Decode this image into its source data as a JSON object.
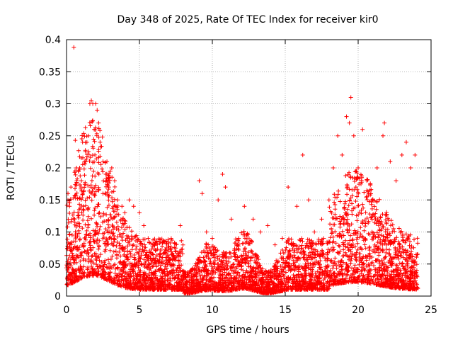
{
  "chart_data": {
    "type": "scatter",
    "title": "Day 348 of 2025, Rate Of TEC Index for receiver kir0",
    "xlabel": "GPS time / hours",
    "ylabel": "ROTI / TECUs",
    "xlim": [
      0,
      25
    ],
    "ylim": [
      0,
      0.4
    ],
    "x_ticks": [
      0,
      5,
      10,
      15,
      20,
      25
    ],
    "y_ticks": [
      0,
      0.05,
      0.1,
      0.15,
      0.2,
      0.25,
      0.3,
      0.35,
      0.4
    ],
    "x_tick_labels": [
      "0",
      "5",
      "10",
      "15",
      "20",
      "25"
    ],
    "y_tick_labels": [
      "0",
      "0.05",
      "0.1",
      "0.15",
      "0.2",
      "0.25",
      "0.3",
      "0.35",
      "0.4"
    ],
    "grid": true,
    "marker": "plus",
    "color": "#ff0000",
    "series": [
      {
        "points": [
          [
            0.1,
            0.16
          ],
          [
            0.2,
            0.14
          ],
          [
            0.3,
            0.17
          ],
          [
            0.5,
            0.388
          ],
          [
            0.6,
            0.243
          ],
          [
            0.7,
            0.18
          ],
          [
            0.9,
            0.2
          ],
          [
            1.0,
            0.17
          ],
          [
            1.1,
            0.24
          ],
          [
            1.3,
            0.21
          ],
          [
            1.5,
            0.25
          ],
          [
            1.6,
            0.3
          ],
          [
            1.7,
            0.305
          ],
          [
            1.8,
            0.3
          ],
          [
            1.9,
            0.26
          ],
          [
            2.0,
            0.3
          ],
          [
            2.1,
            0.29
          ],
          [
            2.2,
            0.27
          ],
          [
            2.3,
            0.24
          ],
          [
            2.5,
            0.21
          ],
          [
            2.7,
            0.19
          ],
          [
            2.9,
            0.17
          ],
          [
            3.1,
            0.2
          ],
          [
            3.3,
            0.18
          ],
          [
            3.5,
            0.15
          ],
          [
            3.8,
            0.14
          ],
          [
            4.0,
            0.13
          ],
          [
            4.3,
            0.15
          ],
          [
            4.6,
            0.14
          ],
          [
            5.0,
            0.13
          ],
          [
            5.3,
            0.11
          ],
          [
            5.6,
            0.09
          ],
          [
            6.0,
            0.08
          ],
          [
            6.5,
            0.06
          ],
          [
            7.0,
            0.06
          ],
          [
            7.5,
            0.07
          ],
          [
            7.8,
            0.11
          ],
          [
            8.5,
            0.04
          ],
          [
            9.1,
            0.18
          ],
          [
            9.3,
            0.16
          ],
          [
            9.6,
            0.1
          ],
          [
            10.0,
            0.09
          ],
          [
            10.4,
            0.15
          ],
          [
            10.7,
            0.19
          ],
          [
            10.9,
            0.17
          ],
          [
            11.3,
            0.12
          ],
          [
            11.8,
            0.09
          ],
          [
            12.2,
            0.14
          ],
          [
            12.8,
            0.12
          ],
          [
            13.3,
            0.1
          ],
          [
            13.8,
            0.11
          ],
          [
            14.3,
            0.08
          ],
          [
            14.8,
            0.09
          ],
          [
            15.2,
            0.17
          ],
          [
            15.8,
            0.14
          ],
          [
            16.2,
            0.22
          ],
          [
            16.6,
            0.15
          ],
          [
            17.0,
            0.1
          ],
          [
            17.5,
            0.12
          ],
          [
            18.0,
            0.15
          ],
          [
            18.3,
            0.2
          ],
          [
            18.6,
            0.25
          ],
          [
            18.9,
            0.22
          ],
          [
            19.2,
            0.28
          ],
          [
            19.4,
            0.27
          ],
          [
            19.5,
            0.31
          ],
          [
            19.7,
            0.25
          ],
          [
            20.0,
            0.2
          ],
          [
            20.3,
            0.26
          ],
          [
            20.6,
            0.18
          ],
          [
            21.0,
            0.15
          ],
          [
            21.3,
            0.2
          ],
          [
            21.7,
            0.25
          ],
          [
            21.8,
            0.27
          ],
          [
            22.2,
            0.21
          ],
          [
            22.6,
            0.18
          ],
          [
            23.0,
            0.22
          ],
          [
            23.3,
            0.24
          ],
          [
            23.6,
            0.2
          ],
          [
            23.9,
            0.22
          ]
        ]
      }
    ]
  }
}
